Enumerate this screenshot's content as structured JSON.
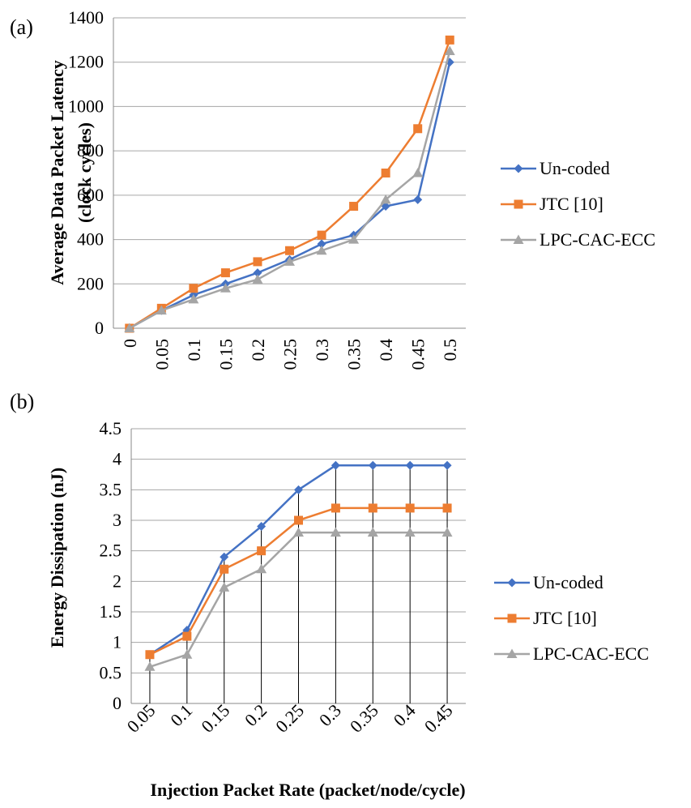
{
  "panel_labels": {
    "a": "(a)",
    "b": "(b)"
  },
  "x_title": "Injection Packet Rate (packet/node/cycle)",
  "colors": {
    "uncoded": "#4472C4",
    "jtc": "#ED7D31",
    "lpc": "#A5A5A5"
  },
  "chart_data": [
    {
      "type": "line",
      "ylabel": "Average Data Packet Latency (clock cycles)",
      "ylabel_lines": [
        "Average Data Packet Latency",
        "(clock cycles)"
      ],
      "categories": [
        "0",
        "0.05",
        "0.1",
        "0.15",
        "0.2",
        "0.25",
        "0.3",
        "0.35",
        "0.4",
        "0.45",
        "0.5"
      ],
      "ylim": [
        0,
        1400
      ],
      "yticks": [
        "0",
        "200",
        "400",
        "600",
        "800",
        "1000",
        "1200",
        "1400"
      ],
      "grid": "horizontal",
      "legend_position": "right",
      "series": [
        {
          "name": "Un-coded",
          "marker": "diamond",
          "values": [
            0,
            80,
            150,
            200,
            250,
            310,
            380,
            420,
            550,
            580,
            1200
          ]
        },
        {
          "name": "JTC [10]",
          "marker": "square",
          "values": [
            0,
            90,
            180,
            250,
            300,
            350,
            420,
            550,
            700,
            900,
            1300
          ]
        },
        {
          "name": "LPC-CAC-ECC",
          "marker": "triangle",
          "values": [
            0,
            80,
            130,
            180,
            220,
            300,
            350,
            400,
            580,
            700,
            1250
          ]
        }
      ]
    },
    {
      "type": "line",
      "ylabel": "Energy Dissipation (nJ)",
      "categories": [
        "0.05",
        "0.1",
        "0.15",
        "0.2",
        "0.25",
        "0.3",
        "0.35",
        "0.4",
        "0.45"
      ],
      "ylim": [
        0,
        4.5
      ],
      "yticks": [
        "0",
        "0.5",
        "1",
        "1.5",
        "2",
        "2.5",
        "3",
        "3.5",
        "4",
        "4.5"
      ],
      "grid": "horizontal",
      "drop_lines": true,
      "legend_position": "right",
      "series": [
        {
          "name": "Un-coded",
          "marker": "diamond",
          "values": [
            0.8,
            1.2,
            2.4,
            2.9,
            3.5,
            3.9,
            3.9,
            3.9,
            3.9
          ]
        },
        {
          "name": "JTC [10]",
          "marker": "square",
          "values": [
            0.8,
            1.1,
            2.2,
            2.5,
            3.0,
            3.2,
            3.2,
            3.2,
            3.2
          ]
        },
        {
          "name": "LPC-CAC-ECC",
          "marker": "triangle",
          "values": [
            0.6,
            0.8,
            1.9,
            2.2,
            2.8,
            2.8,
            2.8,
            2.8,
            2.8
          ]
        }
      ]
    }
  ]
}
